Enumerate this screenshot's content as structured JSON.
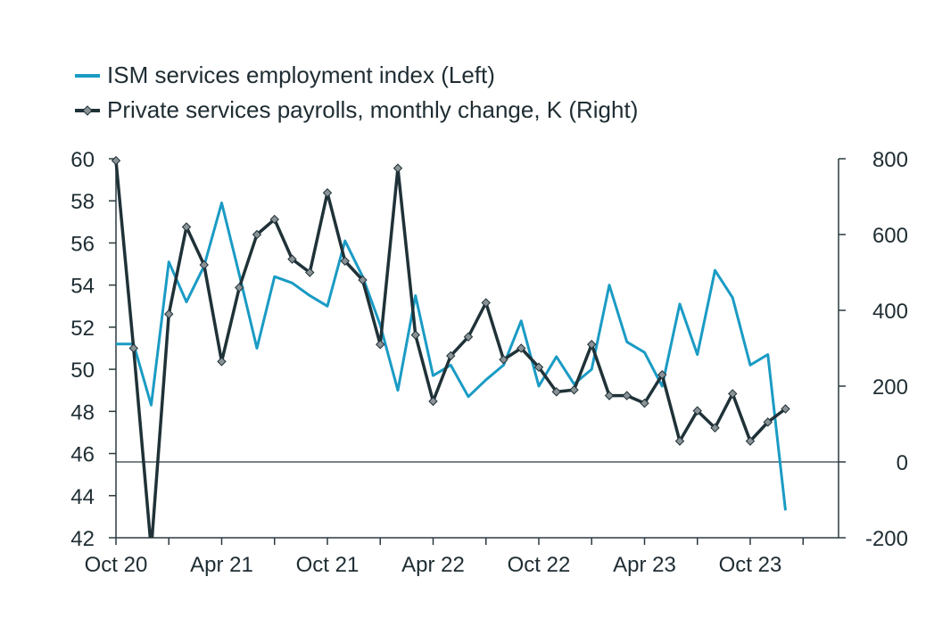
{
  "chart_data": {
    "type": "line",
    "title": "",
    "legend": [
      {
        "label": "ISM services employment index (Left)",
        "color": "#1a9bc4",
        "marker": "none"
      },
      {
        "label": "Private services payrolls, monthly change, K (Right)",
        "color": "#1f3238",
        "marker": "diamond"
      }
    ],
    "x_tick_labels": [
      "Oct 20",
      "Apr 21",
      "Oct 21",
      "Apr 22",
      "Oct 22",
      "Apr 23",
      "Oct 23"
    ],
    "left_axis": {
      "ylim": [
        42,
        60
      ],
      "ticks": [
        "60",
        "58",
        "56",
        "54",
        "52",
        "50",
        "48",
        "46",
        "44",
        "42"
      ]
    },
    "right_axis": {
      "ylim": [
        -200,
        800
      ],
      "ticks": [
        "800",
        "600",
        "400",
        "200",
        "0",
        "-200"
      ]
    },
    "x": [
      "Oct 20",
      "Nov 20",
      "Dec 20",
      "Jan 21",
      "Feb 21",
      "Mar 21",
      "Apr 21",
      "May 21",
      "Jun 21",
      "Jul 21",
      "Aug 21",
      "Sep 21",
      "Oct 21",
      "Nov 21",
      "Dec 21",
      "Jan 22",
      "Feb 22",
      "Mar 22",
      "Apr 22",
      "May 22",
      "Jun 22",
      "Jul 22",
      "Aug 22",
      "Sep 22",
      "Oct 22",
      "Nov 22",
      "Dec 22",
      "Jan 23",
      "Feb 23",
      "Mar 23",
      "Apr 23",
      "May 23",
      "Jun 23",
      "Jul 23",
      "Aug 23",
      "Sep 23",
      "Oct 23",
      "Nov 23",
      "Dec 23"
    ],
    "series": [
      {
        "name": "ISM services employment index (Left)",
        "axis": "left",
        "values": [
          51.2,
          51.2,
          48.3,
          55.1,
          53.2,
          54.9,
          57.9,
          54.5,
          51.0,
          54.4,
          54.1,
          53.5,
          53.0,
          56.1,
          54.4,
          52.1,
          49.0,
          53.5,
          49.7,
          50.2,
          48.7,
          49.5,
          50.2,
          52.3,
          49.2,
          50.6,
          49.3,
          50.0,
          54.0,
          51.3,
          50.8,
          49.2,
          53.1,
          50.7,
          54.7,
          53.4,
          50.2,
          50.7,
          43.3
        ]
      },
      {
        "name": "Private services payrolls, monthly change, K (Right)",
        "axis": "right",
        "values": [
          795,
          300,
          -230,
          390,
          620,
          520,
          265,
          460,
          600,
          640,
          535,
          500,
          710,
          530,
          480,
          310,
          775,
          335,
          160,
          280,
          330,
          420,
          270,
          300,
          250,
          185,
          190,
          310,
          175,
          175,
          155,
          230,
          55,
          135,
          90,
          180,
          55,
          105,
          140
        ]
      }
    ],
    "zero_line": {
      "axis": "right",
      "value": 0
    },
    "colors": {
      "ism": "#1a9bc4",
      "payrolls": "#1f3238",
      "axis": "#2b3a40"
    }
  }
}
